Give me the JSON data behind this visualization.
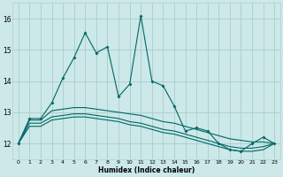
{
  "xlabel": "Humidex (Indice chaleur)",
  "bg_color": "#cce8e8",
  "grid_color": "#b0d0d0",
  "line_color": "#006666",
  "xlim": [
    -0.5,
    23.5
  ],
  "ylim": [
    11.5,
    16.5
  ],
  "yticks": [
    12,
    13,
    14,
    15,
    16
  ],
  "xticks": [
    0,
    1,
    2,
    3,
    4,
    5,
    6,
    7,
    8,
    9,
    10,
    11,
    12,
    13,
    14,
    15,
    16,
    17,
    18,
    19,
    20,
    21,
    22,
    23
  ],
  "series1_x": [
    0,
    1,
    2,
    3,
    4,
    5,
    6,
    7,
    8,
    9,
    10,
    11,
    12,
    13,
    14,
    15,
    16,
    17,
    18,
    19,
    20,
    21,
    22,
    23
  ],
  "series1_y": [
    12.0,
    12.8,
    12.8,
    13.3,
    14.1,
    14.75,
    15.55,
    14.9,
    15.1,
    13.5,
    13.9,
    16.1,
    14.0,
    13.85,
    13.2,
    12.4,
    12.5,
    12.4,
    12.0,
    11.8,
    11.75,
    12.0,
    12.2,
    12.0
  ],
  "series2_x": [
    0,
    1,
    2,
    3,
    4,
    5,
    6,
    7,
    8,
    9,
    10,
    11,
    12,
    13,
    14,
    15,
    16,
    17,
    18,
    19,
    20,
    21,
    22,
    23
  ],
  "series2_y": [
    12.0,
    12.75,
    12.75,
    13.05,
    13.1,
    13.15,
    13.15,
    13.1,
    13.05,
    13.0,
    12.95,
    12.9,
    12.8,
    12.7,
    12.65,
    12.55,
    12.45,
    12.35,
    12.25,
    12.15,
    12.1,
    12.05,
    12.05,
    12.0
  ],
  "series3_x": [
    0,
    1,
    2,
    3,
    4,
    5,
    6,
    7,
    8,
    9,
    10,
    11,
    12,
    13,
    14,
    15,
    16,
    17,
    18,
    19,
    20,
    21,
    22,
    23
  ],
  "series3_y": [
    12.0,
    12.65,
    12.65,
    12.85,
    12.9,
    12.95,
    12.95,
    12.9,
    12.85,
    12.8,
    12.7,
    12.65,
    12.55,
    12.45,
    12.4,
    12.3,
    12.2,
    12.1,
    12.0,
    11.9,
    11.85,
    11.85,
    11.9,
    12.0
  ],
  "series4_x": [
    0,
    1,
    2,
    3,
    4,
    5,
    6,
    7,
    8,
    9,
    10,
    11,
    12,
    13,
    14,
    15,
    16,
    17,
    18,
    19,
    20,
    21,
    22,
    23
  ],
  "series4_y": [
    12.0,
    12.55,
    12.55,
    12.75,
    12.8,
    12.85,
    12.85,
    12.8,
    12.75,
    12.7,
    12.6,
    12.55,
    12.45,
    12.35,
    12.3,
    12.2,
    12.1,
    12.0,
    11.9,
    11.8,
    11.75,
    11.75,
    11.8,
    12.0
  ]
}
